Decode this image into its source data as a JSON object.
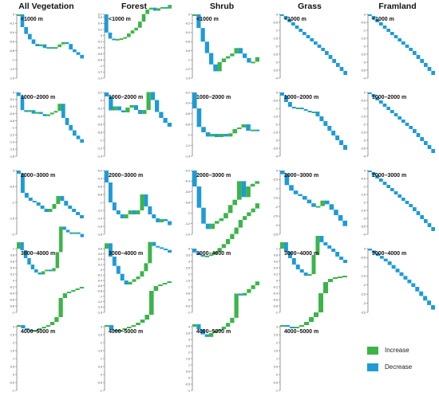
{
  "colors": {
    "increase": "#3cb44a",
    "decrease": "#1e9bd7",
    "axis": "#555555"
  },
  "legend": [
    {
      "label": "Increase",
      "color": "#3cb44a"
    },
    {
      "label": "Decrease",
      "color": "#1e9bd7"
    }
  ],
  "column_titles": [
    "All Vegetation",
    "Forest",
    "Shrub",
    "Grass",
    "Framland"
  ],
  "chart_data": [
    {
      "type": "waterfall",
      "column": "All Vegetation",
      "label": "<1000 m",
      "ylim": [
        -1.4,
        0
      ],
      "yticks": [
        0,
        -0.2,
        -0.4,
        -0.6,
        -0.8,
        -1.0,
        -1.2,
        -1.4
      ],
      "values": [
        0,
        -0.28,
        -0.15,
        -0.12,
        -0.1,
        -0.05,
        0.04,
        -0.08,
        0.02,
        -0.03,
        0.03,
        0.06,
        0.05,
        -0.04,
        -0.12,
        -0.06,
        -0.06,
        -0.08
      ]
    },
    {
      "type": "waterfall",
      "column": "Forest",
      "label": "<1000 m",
      "ylim": [
        -1.4,
        0.7
      ],
      "yticks": [
        0.7,
        0.6,
        0.4,
        0.2,
        0,
        -0.2,
        -0.4,
        -0.6,
        -0.8,
        -1.0,
        -1.2,
        -1.4
      ],
      "values": [
        -0.6,
        -0.2,
        -0.04,
        0.03,
        0.02,
        0.04,
        0.12,
        0.1,
        0.09,
        0.2,
        0.25,
        0.15,
        0.06,
        -0.1,
        0.08,
        0.04,
        -0.05,
        0.12
      ]
    },
    {
      "type": "waterfall",
      "column": "Shrub",
      "label": "<1000 m",
      "ylim": [
        -1.4,
        0
      ],
      "yticks": [
        0,
        -0.2,
        -0.4,
        -0.6,
        -0.8,
        -1.0,
        -1.2,
        -1.4
      ],
      "values": [
        0,
        -0.3,
        -0.3,
        -0.25,
        -0.25,
        -0.15,
        0.2,
        0.08,
        0.05,
        0.06,
        0.12,
        -0.12,
        -0.1,
        -0.1,
        0.02,
        0.1
      ]
    },
    {
      "type": "waterfall",
      "column": "Grass",
      "label": "<1000 m",
      "ylim": [
        -4.0,
        0
      ],
      "yticks": [
        0,
        -0.5,
        -1.0,
        -1.5,
        -2.0,
        -2.5,
        -3.0,
        -3.5,
        -4.0
      ],
      "values": [
        -0.1,
        -0.2,
        -0.2,
        -0.2,
        -0.2,
        -0.2,
        -0.2,
        -0.2,
        -0.2,
        -0.2,
        -0.2,
        -0.2,
        -0.25,
        -0.25,
        -0.25,
        -0.25,
        -0.25,
        -0.25
      ]
    },
    {
      "type": "waterfall",
      "column": "Framland",
      "label": "<1000 m",
      "ylim": [
        -4.0,
        0
      ],
      "yticks": [
        0,
        -0.5,
        -1.0,
        -1.5,
        -2.0,
        -2.5,
        -3.0,
        -3.5,
        -4.0
      ],
      "values": [
        -0.1,
        -0.2,
        -0.2,
        -0.2,
        -0.2,
        -0.2,
        -0.2,
        -0.2,
        -0.2,
        -0.2,
        -0.2,
        -0.2,
        -0.25,
        -0.25,
        -0.25,
        -0.25,
        -0.25,
        -0.25
      ]
    },
    {
      "type": "waterfall",
      "column": "All Vegetation",
      "label": "1000–2000 m",
      "ylim": [
        -1.8,
        0
      ],
      "yticks": [
        0,
        -0.2,
        -0.4,
        -0.6,
        -0.8,
        -1.0,
        -1.2,
        -1.4,
        -1.6,
        -1.8
      ],
      "values": [
        -0.1,
        -0.4,
        -0.05,
        0.05,
        -0.1,
        0.05,
        -0.06,
        -0.06,
        0.05,
        0.05,
        0.05,
        0.2,
        -0.4,
        -0.2,
        -0.15,
        -0.15,
        -0.1,
        -0.1
      ]
    },
    {
      "type": "waterfall",
      "column": "Forest",
      "label": "1000–2000 m",
      "ylim": [
        -1.4,
        0.2
      ],
      "yticks": [
        0.2,
        0,
        -0.2,
        -0.4,
        -0.6,
        -0.8,
        -1.0,
        -1.2,
        -1.4
      ],
      "values": [
        -0.1,
        -0.35,
        0.1,
        -0.1,
        -0.05,
        0.12,
        0.06,
        -0.12,
        -0.1,
        0.1,
        0.45,
        -0.2,
        -0.3,
        -0.15,
        -0.12,
        -0.1
      ]
    },
    {
      "type": "waterfall",
      "column": "Shrub",
      "label": "1000–2000 m",
      "ylim": [
        -1.4,
        -0.2
      ],
      "yticks": [
        -0.2,
        -0.4,
        -0.6,
        -0.8,
        -1.0,
        -1.2,
        -1.4
      ],
      "values": [
        -0.3,
        -0.35,
        -0.1,
        -0.08,
        0.05,
        -0.06,
        0.06,
        -0.05,
        0.06,
        0.08,
        0.03,
        0.06,
        -0.12,
        0.02,
        -0.02
      ]
    },
    {
      "type": "waterfall",
      "column": "Grass",
      "label": "1000–2000 m",
      "ylim": [
        -4.0,
        0
      ],
      "yticks": [
        0,
        -0.5,
        -1.0,
        -1.5,
        -2.0,
        -2.5,
        -3.0,
        -3.5,
        -4.0
      ],
      "values": [
        -0.2,
        -0.4,
        -0.3,
        -0.1,
        0.05,
        -0.1,
        -0.1,
        -0.1,
        0.05,
        -0.3,
        -0.3,
        -0.3,
        -0.3,
        -0.3,
        -0.3,
        -0.3,
        -0.3
      ]
    },
    {
      "type": "waterfall",
      "column": "Framland",
      "label": "1000–2000 m",
      "ylim": [
        -4.0,
        0
      ],
      "yticks": [
        0,
        -0.5,
        -1.0,
        -1.5,
        -2.0,
        -2.5,
        -3.0,
        -3.5,
        -4.0
      ],
      "values": [
        -0.1,
        -0.2,
        -0.2,
        -0.2,
        -0.2,
        -0.2,
        -0.2,
        -0.2,
        -0.2,
        -0.2,
        -0.2,
        -0.2,
        -0.25,
        -0.25,
        -0.25,
        -0.25,
        -0.25,
        -0.25
      ]
    },
    {
      "type": "waterfall",
      "column": "All Vegetation",
      "label": "2000–3000 m",
      "ylim": [
        -2.0,
        0
      ],
      "yticks": [
        0,
        -0.5,
        -1.0,
        -1.5,
        -2.0
      ],
      "values": [
        -0.1,
        -0.6,
        -0.15,
        -0.1,
        -0.05,
        -0.1,
        -0.1,
        -0.1,
        0.1,
        0.15,
        0.25,
        -0.15,
        -0.15,
        -0.1,
        -0.1,
        -0.1,
        -0.1
      ]
    },
    {
      "type": "waterfall",
      "column": "Forest",
      "label": "2000–3000 m",
      "ylim": [
        -1.8,
        -0.2
      ],
      "yticks": [
        -0.2,
        -0.4,
        -0.6,
        -0.8,
        -1.0,
        -1.2,
        -1.4,
        -1.6,
        -1.8
      ],
      "values": [
        -0.3,
        -0.5,
        -0.2,
        -0.1,
        -0.1,
        0.1,
        0.1,
        -0.1,
        0.1,
        0.4,
        -0.3,
        -0.2,
        -0.1,
        -0.1,
        0.08,
        -0.05,
        -0.1
      ]
    },
    {
      "type": "waterfall",
      "column": "Shrub",
      "label": "2000–3000 m",
      "ylim": [
        -1.4,
        -0.2
      ],
      "yticks": [
        -0.2,
        -0.4,
        -0.6,
        -0.8,
        -1.0,
        -1.2,
        -1.4
      ],
      "values": [
        -0.3,
        -0.4,
        -0.3,
        -0.1,
        0.1,
        0.05,
        0.05,
        0.1,
        0.15,
        0.1,
        0.35,
        -0.3,
        0.2,
        0.05,
        0.05
      ]
    },
    {
      "type": "waterfall",
      "column": "Grass",
      "label": "2000–3000 m",
      "ylim": [
        -3.5,
        0
      ],
      "yticks": [
        0,
        -0.5,
        -1.0,
        -1.5,
        -2.0,
        -2.5,
        -3.0,
        -3.5
      ],
      "values": [
        -0.2,
        -0.6,
        -0.3,
        -0.2,
        -0.1,
        -0.2,
        -0.2,
        -0.2,
        0.05,
        0.3,
        -0.2,
        -0.3,
        -0.3,
        -0.3,
        -0.3
      ]
    },
    {
      "type": "waterfall",
      "column": "Framland",
      "label": "2000–3000 m",
      "ylim": [
        -4.0,
        0
      ],
      "yticks": [
        0,
        -0.5,
        -1.0,
        -1.5,
        -2.0,
        -2.5,
        -3.0,
        -3.5,
        -4.0
      ],
      "values": [
        -0.1,
        -0.2,
        -0.2,
        -0.2,
        -0.2,
        -0.2,
        -0.2,
        -0.2,
        -0.2,
        -0.2,
        -0.2,
        -0.2,
        -0.25,
        -0.25,
        -0.25,
        -0.25,
        -0.25,
        -0.25
      ]
    },
    {
      "type": "waterfall",
      "column": "All Vegetation",
      "label": "3000–4000 m",
      "ylim": [
        -1.0,
        1.0
      ],
      "yticks": [
        1.0,
        0.8,
        0.6,
        0.4,
        0.2,
        0,
        -0.2,
        -0.4,
        -0.6,
        -0.8,
        -1.0
      ],
      "values": [
        0.2,
        -0.25,
        -0.25,
        -0.2,
        -0.15,
        -0.1,
        -0.06,
        0.1,
        0.05,
        -0.05,
        0.1,
        0.5,
        0.8,
        -0.1,
        -0.08,
        -0.02,
        0.02,
        -0.05,
        -0.1
      ]
    },
    {
      "type": "waterfall",
      "column": "Forest",
      "label": "3000–4000 m",
      "ylim": [
        -1.6,
        0.8
      ],
      "yticks": [
        0.8,
        0.6,
        0.4,
        0.2,
        0,
        -0.2,
        -0.4,
        -0.6,
        -0.8,
        -1.0,
        -1.2,
        -1.4,
        -1.6
      ],
      "values": [
        0.2,
        -0.5,
        -0.35,
        -0.3,
        -0.25,
        -0.15,
        0.1,
        0.1,
        0.1,
        0.2,
        0.3,
        0.8,
        -0.15,
        -0.05,
        -0.05,
        -0.05,
        -0.1
      ]
    },
    {
      "type": "waterfall",
      "column": "Shrub",
      "label": "3000–4000 m",
      "ylim": [
        -1.0,
        4.0
      ],
      "yticks": [
        4.0,
        3.5,
        3.0,
        2.5,
        2.0,
        1.5,
        1.0,
        0.5,
        0,
        -0.5,
        -1.0
      ],
      "values": [
        -0.3,
        -0.2,
        -0.1,
        0.05,
        0.1,
        0.2,
        0.3,
        0.3,
        0.4,
        0.4,
        0.5,
        0.6,
        0.3,
        0.3,
        0.3,
        0.4
      ]
    },
    {
      "type": "waterfall",
      "column": "Grass",
      "label": "3000–4000 m",
      "ylim": [
        -1.0,
        1.0
      ],
      "yticks": [
        1.0,
        0.8,
        0.6,
        0.4,
        0.2,
        0,
        -0.2,
        -0.4,
        -0.6,
        -0.8,
        -1.0
      ],
      "values": [
        0.2,
        -0.3,
        -0.2,
        -0.2,
        -0.15,
        -0.1,
        -0.1,
        0.05,
        0.6,
        0.6,
        -0.2,
        -0.1,
        -0.1,
        -0.1,
        -0.15,
        -0.1,
        -0.1
      ]
    },
    {
      "type": "waterfall",
      "column": "Framland",
      "label": "3000–4000 m",
      "ylim": [
        -3.5,
        0
      ],
      "yticks": [
        0,
        -0.5,
        -1.0,
        -1.5,
        -2.0,
        -2.5,
        -3.0,
        -3.5
      ],
      "values": [
        -0.1,
        -0.15,
        -0.15,
        -0.15,
        -0.15,
        -0.2,
        -0.2,
        -0.2,
        -0.2,
        -0.2,
        -0.2,
        -0.2,
        -0.25,
        -0.25,
        -0.25,
        -0.25,
        -0.25
      ]
    },
    {
      "type": "waterfall",
      "column": "All Vegetation",
      "label": "4000–5000 m",
      "ylim": [
        -1.0,
        3.0
      ],
      "yticks": [
        3.0,
        2.5,
        2.0,
        1.5,
        1.0,
        0.5,
        0,
        -0.5,
        -1.0
      ],
      "values": [
        0.1,
        -0.2,
        -0.1,
        -0.1,
        0.1,
        0.1,
        0.1,
        0.1,
        0.2,
        0.3,
        1.2,
        0.3,
        0.1,
        0.1,
        0.1,
        0.1
      ]
    },
    {
      "type": "waterfall",
      "column": "Forest",
      "label": "4000–5000 m",
      "ylim": [
        -1.0,
        3.0
      ],
      "yticks": [
        3.0,
        2.5,
        2.0,
        1.5,
        1.0,
        0.5,
        0,
        -0.5,
        -1.0
      ],
      "values": [
        0.1,
        -0.3,
        -0.1,
        0.1,
        0.1,
        0.1,
        0.1,
        0.15,
        0.2,
        0.3,
        1.5,
        0.3,
        0.1,
        0.1,
        0.1
      ]
    },
    {
      "type": "waterfall",
      "column": "Shrub",
      "label": "4000–5000 m",
      "ylim": [
        -1.0,
        4.0
      ],
      "yticks": [
        4.0,
        3.5,
        3.0,
        2.5,
        2.0,
        1.5,
        1.0,
        0.5,
        0,
        -0.5,
        -1.0
      ],
      "values": [
        0.2,
        -0.4,
        -0.4,
        -0.2,
        0.3,
        0.2,
        0.1,
        0.2,
        0.3,
        0.4,
        1.9,
        -0.15,
        0.2,
        0.3,
        0.3,
        0.3
      ]
    },
    {
      "type": "waterfall",
      "column": "Grass",
      "label": "4000–5000 m",
      "ylim": [
        -1.0,
        3.0
      ],
      "yticks": [
        3.0,
        2.5,
        2.0,
        1.5,
        1.0,
        0.5,
        0,
        -0.5,
        -1.0
      ],
      "values": [
        0.1,
        -0.1,
        -0.1,
        0.1,
        0.1,
        0.2,
        0.3,
        0.3,
        1.2,
        0.7,
        0.2,
        0.1,
        0.05,
        0.05
      ]
    }
  ]
}
